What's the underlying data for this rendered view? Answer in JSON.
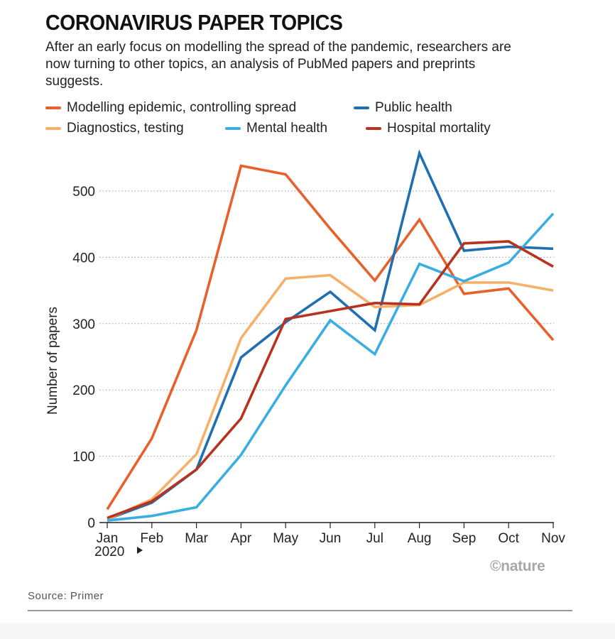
{
  "title": "CORONAVIRUS PAPER TOPICS",
  "subtitle": "After an early focus on modelling the spread of the pandemic, researchers are now turning to other topics, an analysis of PubMed papers and preprints suggests.",
  "logo_text": "©nature",
  "source": "Source: Primer",
  "chart_data": {
    "type": "line",
    "ylabel": "Number of papers",
    "ylim": [
      0,
      560
    ],
    "yticks": [
      0,
      100,
      200,
      300,
      400,
      500
    ],
    "categories": [
      "Jan",
      "Feb",
      "Mar",
      "Apr",
      "May",
      "Jun",
      "Jul",
      "Aug",
      "Sep",
      "Oct",
      "Nov"
    ],
    "year_label": "2020",
    "grid": "horizontal-dotted",
    "legend_placement": "top",
    "series": [
      {
        "name": "Modelling epidemic, controlling spread",
        "color": "#e8602c",
        "values": [
          20,
          127,
          290,
          538,
          525,
          443,
          365,
          457,
          345,
          353,
          275
        ]
      },
      {
        "name": "Public health",
        "color": "#1f6fb2",
        "values": [
          5,
          30,
          80,
          249,
          302,
          348,
          290,
          557,
          410,
          416,
          413
        ]
      },
      {
        "name": "Diagnostics, testing",
        "color": "#f5b06a",
        "values": [
          5,
          35,
          103,
          278,
          368,
          373,
          325,
          328,
          362,
          362,
          350
        ]
      },
      {
        "name": "Mental health",
        "color": "#3aaee0",
        "values": [
          3,
          10,
          23,
          102,
          207,
          305,
          254,
          390,
          364,
          392,
          466
        ]
      },
      {
        "name": "Hospital mortality",
        "color": "#b8331f",
        "values": [
          7,
          32,
          80,
          157,
          307,
          319,
          331,
          329,
          421,
          424,
          386
        ]
      }
    ]
  }
}
